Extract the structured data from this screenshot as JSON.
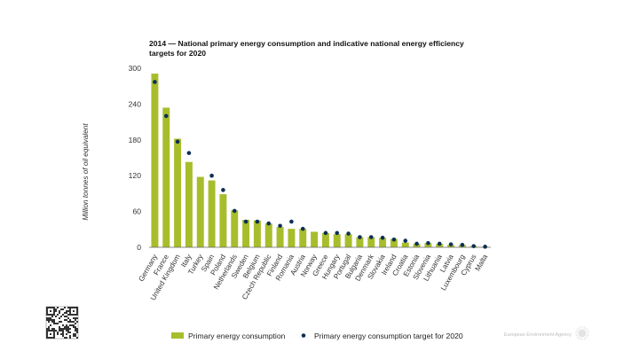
{
  "chart_data": {
    "type": "bar",
    "title_lines": [
      "2014 — National primary energy consumption and indicative national energy efficiency",
      "targets for 2020"
    ],
    "ylabel": "Million tonnes of oil equivalent",
    "ylim": [
      0,
      300
    ],
    "yticks": [
      0,
      60,
      120,
      180,
      240,
      300
    ],
    "categories": [
      "Germany",
      "France",
      "United Kingdom",
      "Italy",
      "Turkey",
      "Spain",
      "Poland",
      "Netherlands",
      "Sweden",
      "Belgium",
      "Czech Republic",
      "Finland",
      "Romania",
      "Austria",
      "Norway",
      "Greece",
      "Hungary",
      "Portugal",
      "Bulgaria",
      "Denmark",
      "Slovakia",
      "Ireland",
      "Croatia",
      "Estonia",
      "Slovenia",
      "Lithuania",
      "Latvia",
      "Luxembourg",
      "Cyprus",
      "Malta"
    ],
    "series": [
      {
        "name": "Primary energy consumption",
        "kind": "bar",
        "color": "#a8bd2b",
        "values": [
          291,
          234,
          182,
          143,
          118,
          112,
          89,
          62,
          46,
          45,
          40,
          34,
          31,
          31,
          26,
          24,
          22,
          22,
          17,
          17,
          16,
          14,
          8,
          6,
          7,
          6,
          4,
          4,
          2,
          1
        ]
      },
      {
        "name": "Primary energy consumption target for 2020",
        "kind": "point",
        "color": "#0c2f55",
        "values": [
          277,
          220,
          177,
          158,
          null,
          120,
          96,
          61,
          43,
          43,
          40,
          36,
          43,
          31,
          null,
          24,
          24,
          23,
          17,
          17,
          16,
          13,
          11,
          6,
          7,
          6,
          5,
          4,
          2,
          1
        ]
      }
    ],
    "grid": false,
    "legend_position": "bottom"
  },
  "footer": {
    "agency": "European Environment Agency"
  }
}
